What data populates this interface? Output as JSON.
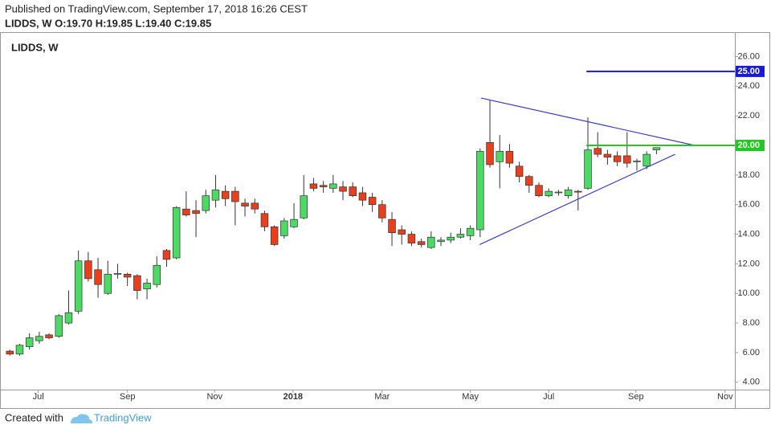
{
  "header": {
    "published": "Published on TradingView.com, September 17, 2018 16:26 CEST",
    "quote": "LIDDS, W  O:19.70 H:19.85 L:19.40 C:19.85"
  },
  "footer": {
    "created": "Created with",
    "brand": "TradingView"
  },
  "chart_data": {
    "type": "candlestick",
    "title": "LIDDS, W",
    "x": [
      0,
      1,
      2,
      3,
      4,
      5,
      6,
      7,
      8,
      9,
      10,
      11,
      12,
      13,
      14,
      15,
      16,
      17,
      18,
      19,
      20,
      21,
      22,
      23,
      24,
      25,
      26,
      27,
      28,
      29,
      30,
      31,
      32,
      33,
      34,
      35,
      36,
      37,
      38,
      39,
      40,
      41,
      42,
      43,
      44,
      45,
      46,
      47,
      48,
      49,
      50,
      51,
      52,
      53,
      54,
      55,
      56,
      57,
      58,
      59,
      60,
      61,
      62,
      63,
      64,
      65,
      66
    ],
    "open": [
      6.1,
      5.9,
      6.4,
      6.8,
      7.2,
      7.1,
      8.0,
      8.8,
      12.2,
      11.6,
      10.0,
      11.3,
      11.3,
      11.2,
      10.3,
      10.6,
      12.9,
      12.4,
      15.7,
      15.6,
      15.6,
      16.3,
      16.9,
      16.9,
      16.1,
      16.1,
      15.4,
      14.5,
      13.9,
      14.5,
      15.1,
      17.4,
      17.3,
      17.1,
      17.2,
      17.2,
      16.8,
      16.5,
      16.0,
      15.0,
      14.3,
      14.0,
      13.5,
      13.1,
      13.5,
      13.6,
      13.8,
      13.9,
      14.3,
      20.2,
      18.9,
      19.6,
      18.6,
      17.9,
      17.3,
      16.6,
      16.8,
      16.6,
      16.9,
      17.1,
      19.8,
      19.4,
      19.3,
      19.3,
      18.9,
      18.6,
      19.7
    ],
    "high": [
      6.2,
      6.6,
      7.3,
      7.4,
      7.3,
      8.6,
      10.2,
      12.9,
      12.8,
      12.4,
      12.2,
      12.0,
      11.4,
      11.3,
      11.0,
      12.5,
      13.0,
      15.9,
      16.9,
      16.3,
      17.0,
      18.0,
      17.3,
      17.2,
      16.4,
      16.4,
      15.6,
      14.6,
      15.1,
      16.1,
      18.0,
      17.8,
      17.6,
      18.0,
      17.6,
      17.5,
      17.2,
      16.8,
      16.3,
      15.5,
      14.6,
      14.2,
      13.7,
      14.2,
      13.8,
      14.1,
      14.4,
      14.6,
      19.8,
      23.1,
      20.7,
      20.1,
      18.9,
      18.0,
      17.5,
      17.1,
      17.0,
      17.2,
      17.0,
      21.9,
      20.9,
      19.7,
      19.6,
      20.9,
      19.1,
      19.6,
      19.85
    ],
    "low": [
      5.8,
      5.8,
      6.2,
      6.6,
      6.9,
      7.0,
      7.9,
      8.6,
      10.8,
      9.7,
      9.9,
      11.0,
      10.5,
      9.6,
      9.6,
      10.4,
      11.8,
      12.3,
      15.2,
      13.8,
      15.4,
      15.8,
      15.9,
      14.6,
      15.2,
      15.4,
      14.2,
      13.2,
      13.7,
      14.4,
      15.0,
      16.9,
      16.8,
      16.8,
      16.3,
      16.5,
      15.9,
      15.5,
      14.8,
      13.2,
      13.3,
      13.2,
      13.1,
      13.0,
      13.2,
      13.4,
      13.7,
      13.6,
      13.8,
      18.5,
      17.1,
      18.5,
      17.5,
      16.8,
      16.5,
      16.5,
      16.6,
      16.4,
      15.6,
      17.0,
      19.2,
      18.7,
      18.6,
      18.5,
      18.3,
      18.4,
      19.4
    ],
    "close": [
      5.9,
      6.5,
      7.0,
      7.1,
      7.0,
      8.5,
      8.7,
      12.2,
      11.0,
      10.6,
      11.3,
      11.35,
      11.1,
      10.2,
      10.7,
      11.9,
      12.3,
      15.8,
      15.3,
      15.4,
      16.6,
      17.0,
      16.4,
      16.2,
      15.9,
      15.7,
      14.5,
      13.3,
      14.9,
      15.0,
      16.6,
      17.1,
      17.2,
      17.4,
      16.9,
      16.6,
      16.3,
      16.0,
      15.1,
      14.1,
      14.0,
      13.4,
      13.3,
      13.8,
      13.6,
      13.8,
      14.0,
      14.4,
      19.6,
      18.7,
      19.6,
      18.8,
      17.9,
      17.3,
      16.6,
      16.9,
      16.85,
      17.0,
      16.85,
      19.7,
      19.4,
      19.2,
      18.9,
      18.8,
      18.95,
      19.4,
      19.85
    ],
    "up_color": "#4cd964",
    "down_color": "#e8401c",
    "xlim": [
      -0.35,
      74.0
    ],
    "xticks": [
      {
        "value": 2.9,
        "label": "Jul"
      },
      {
        "value": 12.0,
        "label": "Sep"
      },
      {
        "value": 20.9,
        "label": "Nov"
      },
      {
        "value": 28.9,
        "label": "2018"
      },
      {
        "value": 38.0,
        "label": "Mar"
      },
      {
        "value": 47.0,
        "label": "May"
      },
      {
        "value": 55.0,
        "label": "Jul"
      },
      {
        "value": 63.9,
        "label": "Sep"
      },
      {
        "value": 73.0,
        "label": "Nov"
      }
    ],
    "ylim": [
      3.5,
      27.6
    ],
    "yticks": [
      {
        "value": 4,
        "label": "4.00"
      },
      {
        "value": 6,
        "label": "6.00"
      },
      {
        "value": 8,
        "label": "8.00"
      },
      {
        "value": 10,
        "label": "10.00"
      },
      {
        "value": 12,
        "label": "12.00"
      },
      {
        "value": 14,
        "label": "14.00"
      },
      {
        "value": 16,
        "label": "16.00"
      },
      {
        "value": 18,
        "label": "18.00"
      },
      {
        "value": 20,
        "label": "20.00"
      },
      {
        "value": 22,
        "label": "22.00"
      },
      {
        "value": 24,
        "label": "24.00"
      },
      {
        "value": 26,
        "label": "26.00"
      }
    ],
    "trendlines": [
      {
        "x": [
          48.1,
          69.9
        ],
        "y": [
          23.2,
          20.0
        ],
        "color": "#3a3ad8"
      },
      {
        "x": [
          47.95,
          67.9
        ],
        "y": [
          13.3,
          19.4
        ],
        "color": "#3a3ad8"
      }
    ],
    "levels": [
      {
        "value": 25,
        "label": "25.00",
        "start": 58.85,
        "color": "#1a1ad0"
      },
      {
        "value": 20,
        "label": "20.00",
        "start": 58.85,
        "color": "#22c81e"
      }
    ]
  }
}
